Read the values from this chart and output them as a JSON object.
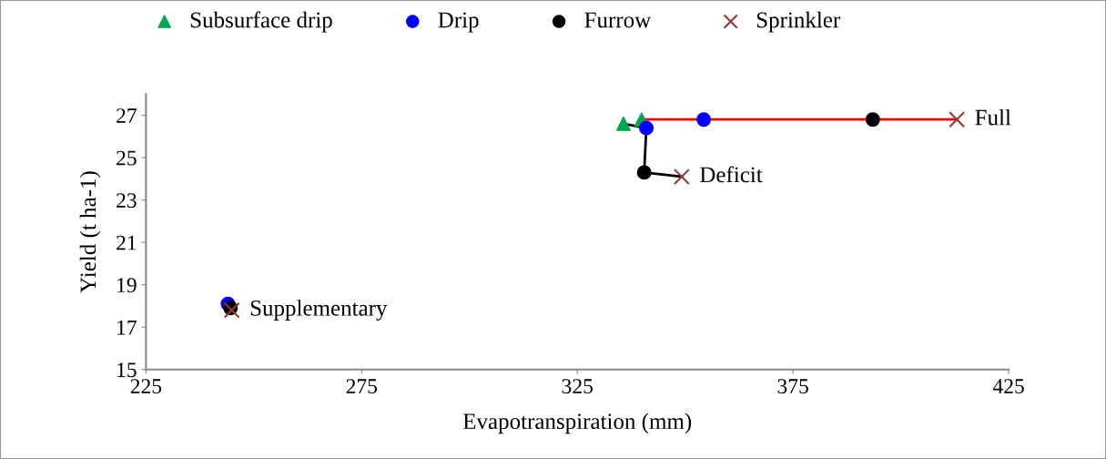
{
  "chart_data": {
    "type": "scatter",
    "xlabel": "Evapotranspiration (mm)",
    "ylabel": "Yield (t ha-1)",
    "xlim": [
      225,
      425
    ],
    "xticks": [
      225,
      275,
      325,
      375,
      425
    ],
    "ylim": [
      15,
      28
    ],
    "yticks": [
      15,
      17,
      19,
      21,
      23,
      25,
      27
    ],
    "grid": false,
    "legend": "top",
    "series": [
      {
        "type": "line",
        "color": "#000000",
        "marker": "none",
        "x": [
          335.7,
          341,
          340.5,
          349.2
        ],
        "values": [
          26.6,
          26.4,
          24.3,
          24.1
        ]
      },
      {
        "type": "line",
        "color": "#ff0000",
        "marker": "none",
        "x": [
          339.9,
          413
        ],
        "values": [
          26.8,
          26.8
        ]
      },
      {
        "name": "Subsurface drip",
        "color": "#00a651",
        "marker": "triangle",
        "x": [
          335.7,
          339.9
        ],
        "values": [
          26.6,
          26.8
        ]
      },
      {
        "name": "Drip",
        "color": "#0000ff",
        "marker": "circle",
        "x": [
          244,
          341,
          354.3
        ],
        "values": [
          18.1,
          26.4,
          26.8
        ]
      },
      {
        "name": "Furrow",
        "color": "#000000",
        "marker": "circle",
        "x": [
          244.6,
          340.5,
          393.5
        ],
        "values": [
          17.9,
          24.3,
          26.8
        ]
      },
      {
        "name": "Sprinkler",
        "color": "#953735",
        "marker": "cross",
        "x": [
          244.9,
          349.2,
          413
        ],
        "values": [
          17.8,
          24.1,
          26.8
        ]
      }
    ],
    "annotations": [
      {
        "text": "Full",
        "x": 413,
        "y": 26.8
      },
      {
        "text": "Deficit",
        "x": 349.2,
        "y": 24.1
      },
      {
        "text": "Supplementary",
        "x": 244.9,
        "y": 17.8
      }
    ]
  }
}
